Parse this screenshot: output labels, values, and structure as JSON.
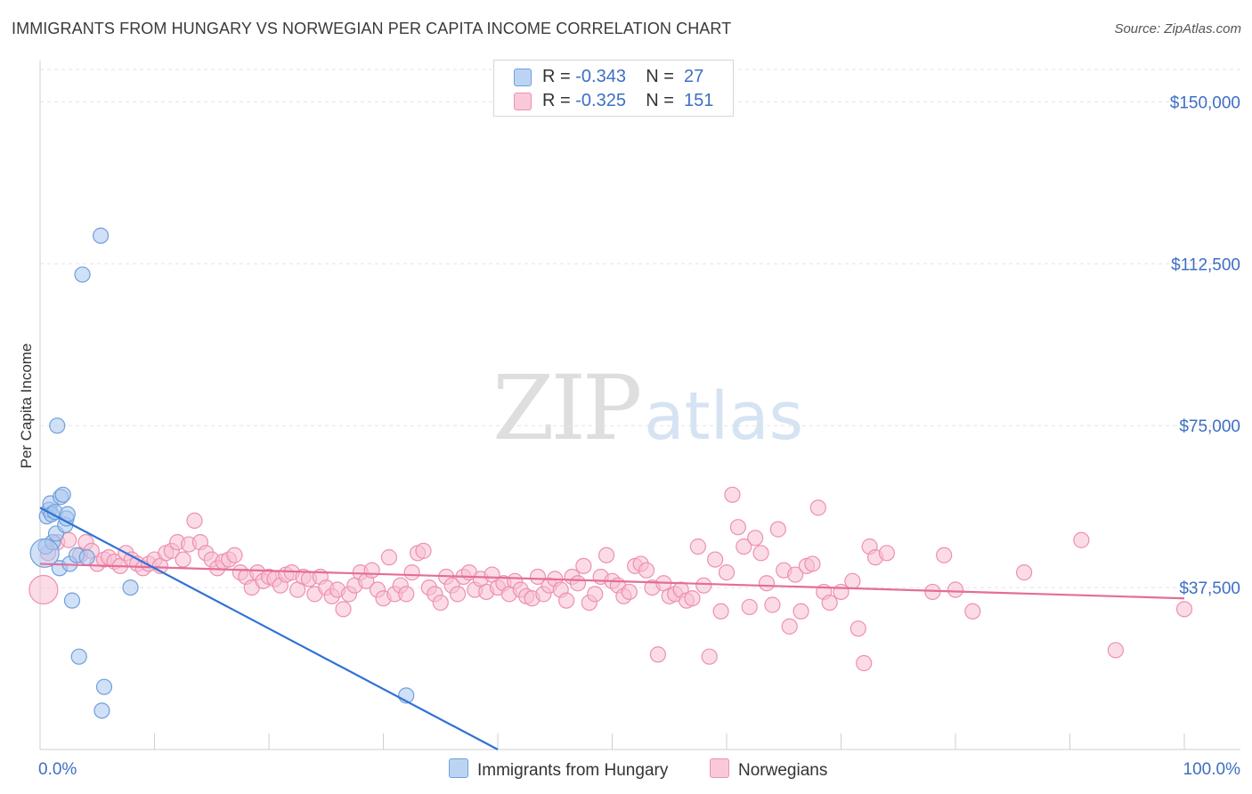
{
  "title": "IMMIGRANTS FROM HUNGARY VS NORWEGIAN PER CAPITA INCOME CORRELATION CHART",
  "source": "Source: ZipAtlas.com",
  "watermark": {
    "zip": "ZIP",
    "atlas": "atlas"
  },
  "legend": {
    "hungary": {
      "r_label": "R =",
      "r_value": "-0.343",
      "n_label": "N =",
      "n_value": "27"
    },
    "norwegians": {
      "r_label": "R =",
      "r_value": "-0.325",
      "n_label": "N =",
      "n_value": "151"
    }
  },
  "colors": {
    "hungary_fill": "#a9c6ef",
    "hungary_stroke": "#6f9fdc",
    "hungary_line": "#2f72d6",
    "norwegian_fill": "#f7bfd2",
    "norwegian_stroke": "#ee8fb1",
    "norwegian_line": "#e46d99",
    "tick_label": "#3d6fc4",
    "grid": "#e3e3e3"
  },
  "chart_data": {
    "type": "scatter",
    "title": "IMMIGRANTS FROM HUNGARY VS NORWEGIAN PER CAPITA INCOME CORRELATION CHART",
    "xlabel": "",
    "ylabel": "Per Capita Income",
    "xlim": [
      0,
      100
    ],
    "ylim": [
      0,
      157500
    ],
    "x_tick_labels": [
      "0.0%",
      "100.0%"
    ],
    "y_ticks": [
      37500,
      75000,
      112500,
      150000
    ],
    "y_tick_labels": [
      "$37,500",
      "$75,000",
      "$112,500",
      "$150,000"
    ],
    "grid": true,
    "legend_position": "bottom",
    "series": [
      {
        "name": "Immigrants from Hungary",
        "points": [
          [
            0.5,
            47000
          ],
          [
            0.6,
            54000
          ],
          [
            0.8,
            55500
          ],
          [
            0.9,
            57000
          ],
          [
            1.0,
            54500
          ],
          [
            1.1,
            48000
          ],
          [
            1.3,
            55000
          ],
          [
            1.4,
            50000
          ],
          [
            1.5,
            75000
          ],
          [
            1.7,
            42000
          ],
          [
            1.8,
            58500
          ],
          [
            2.0,
            59000
          ],
          [
            2.2,
            52000
          ],
          [
            2.3,
            53500
          ],
          [
            2.4,
            54500
          ],
          [
            2.6,
            43000
          ],
          [
            2.8,
            34500
          ],
          [
            3.2,
            45000
          ],
          [
            3.4,
            21500
          ],
          [
            3.7,
            110000
          ],
          [
            5.3,
            119000
          ],
          [
            5.4,
            9000
          ],
          [
            5.6,
            14500
          ],
          [
            7.9,
            37500
          ],
          [
            32.0,
            12500
          ],
          [
            0.4,
            45500
          ],
          [
            4.1,
            44500
          ]
        ],
        "trend": [
          [
            0,
            56000
          ],
          [
            40,
            0
          ]
        ]
      },
      {
        "name": "Norwegians",
        "points": [
          [
            0.3,
            37000
          ],
          [
            0.7,
            45500
          ],
          [
            1.5,
            48000
          ],
          [
            2.5,
            48500
          ],
          [
            3.5,
            45000
          ],
          [
            4.0,
            48000
          ],
          [
            4.5,
            46000
          ],
          [
            5.0,
            43000
          ],
          [
            5.6,
            44000
          ],
          [
            6.0,
            44500
          ],
          [
            6.5,
            43500
          ],
          [
            7.0,
            42500
          ],
          [
            7.5,
            45500
          ],
          [
            8.0,
            44000
          ],
          [
            8.5,
            43000
          ],
          [
            9.0,
            42000
          ],
          [
            9.5,
            43000
          ],
          [
            10.0,
            44000
          ],
          [
            10.5,
            42500
          ],
          [
            11.0,
            45500
          ],
          [
            11.5,
            46000
          ],
          [
            12.0,
            48000
          ],
          [
            12.5,
            44000
          ],
          [
            13.0,
            47500
          ],
          [
            13.5,
            53000
          ],
          [
            14.0,
            48000
          ],
          [
            14.5,
            45500
          ],
          [
            15.0,
            44000
          ],
          [
            15.5,
            42000
          ],
          [
            16.0,
            43500
          ],
          [
            16.5,
            44000
          ],
          [
            17.0,
            45000
          ],
          [
            17.5,
            41000
          ],
          [
            18.0,
            40000
          ],
          [
            18.5,
            37500
          ],
          [
            19.0,
            41000
          ],
          [
            19.5,
            39000
          ],
          [
            20.0,
            40000
          ],
          [
            20.5,
            39500
          ],
          [
            21.0,
            38000
          ],
          [
            21.5,
            40500
          ],
          [
            22.0,
            41000
          ],
          [
            22.5,
            37000
          ],
          [
            23.0,
            40000
          ],
          [
            23.5,
            39500
          ],
          [
            24.0,
            36000
          ],
          [
            24.5,
            40000
          ],
          [
            25.0,
            37500
          ],
          [
            25.5,
            35500
          ],
          [
            26.0,
            37000
          ],
          [
            26.5,
            32500
          ],
          [
            27.0,
            36000
          ],
          [
            27.5,
            38000
          ],
          [
            28.0,
            41000
          ],
          [
            28.5,
            39000
          ],
          [
            29.0,
            41500
          ],
          [
            29.5,
            37000
          ],
          [
            30.0,
            35000
          ],
          [
            30.5,
            44500
          ],
          [
            31.0,
            36000
          ],
          [
            31.5,
            38000
          ],
          [
            32.0,
            36000
          ],
          [
            32.5,
            41000
          ],
          [
            33.0,
            45500
          ],
          [
            33.5,
            46000
          ],
          [
            34.0,
            37500
          ],
          [
            34.5,
            36000
          ],
          [
            35.0,
            34000
          ],
          [
            35.5,
            40000
          ],
          [
            36.0,
            38000
          ],
          [
            36.5,
            36000
          ],
          [
            37.0,
            40000
          ],
          [
            37.5,
            41000
          ],
          [
            38.0,
            37000
          ],
          [
            38.5,
            39500
          ],
          [
            39.0,
            36500
          ],
          [
            39.5,
            40500
          ],
          [
            40.0,
            37500
          ],
          [
            40.5,
            38500
          ],
          [
            41.0,
            36000
          ],
          [
            41.5,
            39000
          ],
          [
            42.0,
            37000
          ],
          [
            42.5,
            35500
          ],
          [
            43.0,
            35000
          ],
          [
            43.5,
            40000
          ],
          [
            44.0,
            36000
          ],
          [
            44.5,
            38000
          ],
          [
            45.0,
            39500
          ],
          [
            45.5,
            37000
          ],
          [
            46.0,
            34500
          ],
          [
            46.5,
            40000
          ],
          [
            47.0,
            38500
          ],
          [
            47.5,
            42500
          ],
          [
            48.0,
            34000
          ],
          [
            48.5,
            36000
          ],
          [
            49.0,
            40000
          ],
          [
            49.5,
            45000
          ],
          [
            50.0,
            39000
          ],
          [
            50.5,
            38000
          ],
          [
            51.0,
            35500
          ],
          [
            51.5,
            36500
          ],
          [
            52.0,
            42500
          ],
          [
            52.5,
            43000
          ],
          [
            53.0,
            41500
          ],
          [
            53.5,
            37500
          ],
          [
            54.0,
            22000
          ],
          [
            54.5,
            38500
          ],
          [
            55.0,
            35500
          ],
          [
            55.5,
            36000
          ],
          [
            56.0,
            37000
          ],
          [
            56.5,
            34500
          ],
          [
            57.0,
            35000
          ],
          [
            57.5,
            47000
          ],
          [
            58.0,
            38000
          ],
          [
            58.5,
            21500
          ],
          [
            59.0,
            44000
          ],
          [
            59.5,
            32000
          ],
          [
            60.0,
            41000
          ],
          [
            60.5,
            59000
          ],
          [
            61.0,
            51500
          ],
          [
            61.5,
            47000
          ],
          [
            62.0,
            33000
          ],
          [
            62.5,
            49000
          ],
          [
            63.0,
            45500
          ],
          [
            63.5,
            38500
          ],
          [
            64.0,
            33500
          ],
          [
            64.5,
            51000
          ],
          [
            65.0,
            41500
          ],
          [
            65.5,
            28500
          ],
          [
            66.0,
            40500
          ],
          [
            66.5,
            32000
          ],
          [
            67.0,
            42500
          ],
          [
            67.5,
            43000
          ],
          [
            68.0,
            56000
          ],
          [
            68.5,
            36500
          ],
          [
            69.0,
            34000
          ],
          [
            70.0,
            36500
          ],
          [
            71.0,
            39000
          ],
          [
            71.5,
            28000
          ],
          [
            72.0,
            20000
          ],
          [
            72.5,
            47000
          ],
          [
            73.0,
            44500
          ],
          [
            74.0,
            45500
          ],
          [
            78.0,
            36500
          ],
          [
            79.0,
            45000
          ],
          [
            80.0,
            37000
          ],
          [
            81.5,
            32000
          ],
          [
            86.0,
            41000
          ],
          [
            91.0,
            48500
          ],
          [
            94.0,
            23000
          ],
          [
            100.0,
            32500
          ]
        ],
        "trend": [
          [
            0,
            43000
          ],
          [
            100,
            35000
          ]
        ]
      }
    ]
  },
  "bottom_legend": [
    "Immigrants from Hungary",
    "Norwegians"
  ]
}
